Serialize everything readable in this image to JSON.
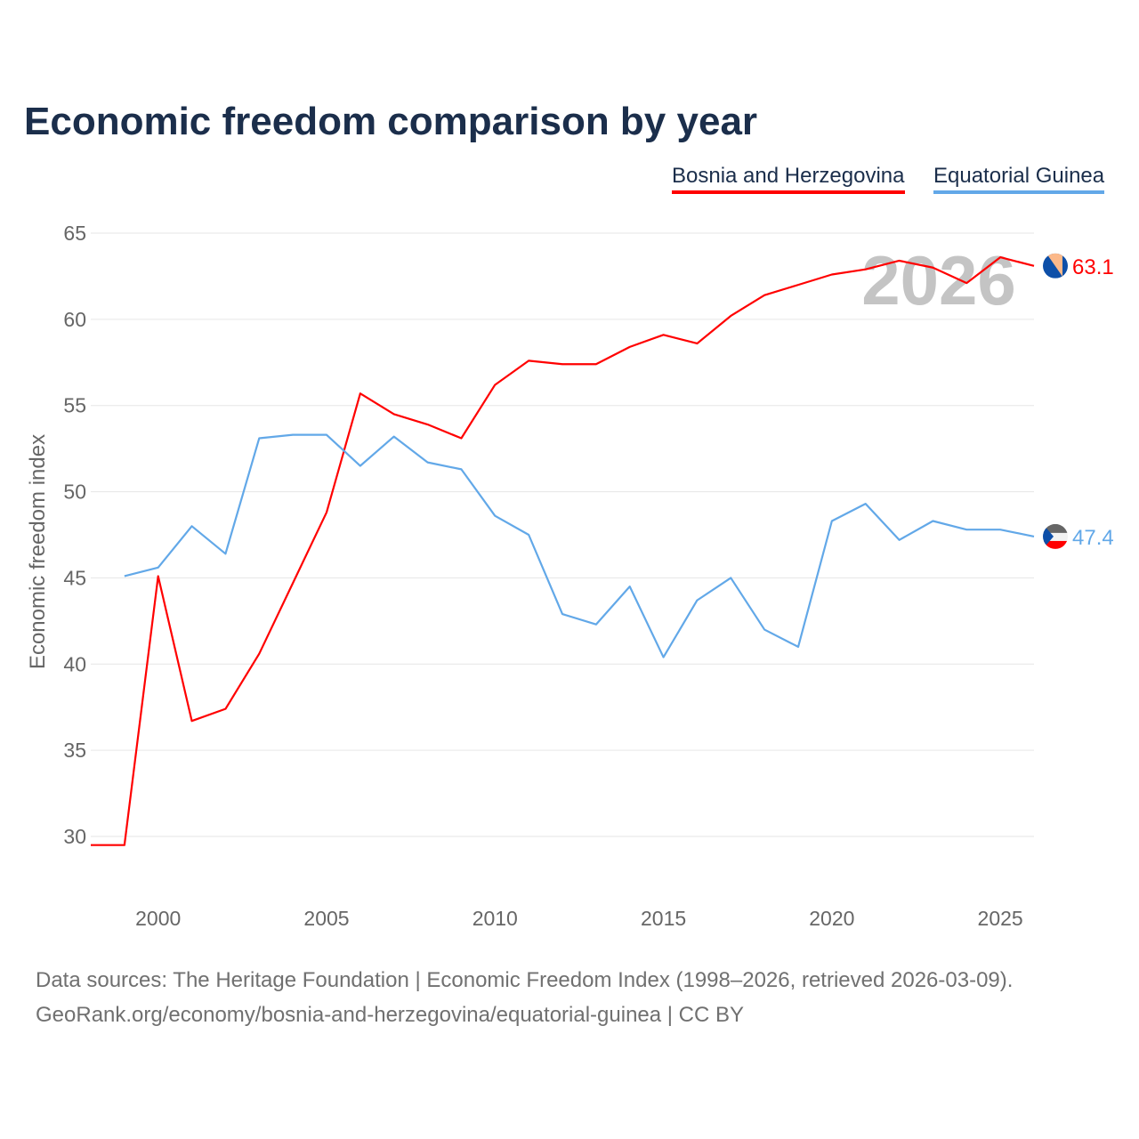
{
  "chart_data": {
    "type": "line",
    "title": "Economic freedom comparison by year",
    "xlabel": "",
    "ylabel": "Economic freedom index",
    "xlim": [
      1998,
      2026
    ],
    "ylim": [
      27.5,
      65
    ],
    "yticks": [
      30,
      35,
      40,
      45,
      50,
      55,
      60,
      65
    ],
    "xticks": [
      2000,
      2005,
      2010,
      2015,
      2020,
      2025
    ],
    "grid": true,
    "legend_position": "top-right",
    "watermark_year": "2026",
    "series": [
      {
        "name": "Bosnia and Herzegovina",
        "color": "#ff0000",
        "end_label": "63.1",
        "flag": "bosnia-flag",
        "x": [
          1998,
          1999,
          2000,
          2001,
          2002,
          2003,
          2004,
          2005,
          2006,
          2007,
          2008,
          2009,
          2010,
          2011,
          2012,
          2013,
          2014,
          2015,
          2016,
          2017,
          2018,
          2019,
          2020,
          2021,
          2022,
          2023,
          2024,
          2025,
          2026
        ],
        "values": [
          29.5,
          29.5,
          45.1,
          36.7,
          37.4,
          40.6,
          44.7,
          48.8,
          55.7,
          54.5,
          53.9,
          53.1,
          56.2,
          57.6,
          57.4,
          57.4,
          58.4,
          59.1,
          58.6,
          60.2,
          61.4,
          62.0,
          62.6,
          62.9,
          63.4,
          63.0,
          62.1,
          63.6,
          63.1
        ]
      },
      {
        "name": "Equatorial Guinea",
        "color": "#62a8e8",
        "end_label": "47.4",
        "flag": "equatorial-guinea-flag",
        "x": [
          1999,
          2000,
          2001,
          2002,
          2003,
          2004,
          2005,
          2006,
          2007,
          2008,
          2009,
          2010,
          2011,
          2012,
          2013,
          2014,
          2015,
          2016,
          2017,
          2018,
          2019,
          2020,
          2021,
          2022,
          2023,
          2024,
          2025,
          2026
        ],
        "values": [
          45.1,
          45.6,
          48.0,
          46.4,
          53.1,
          53.3,
          53.3,
          51.5,
          53.2,
          51.7,
          51.3,
          48.6,
          47.5,
          42.9,
          42.3,
          44.5,
          40.4,
          43.7,
          45.0,
          42.0,
          41.0,
          48.3,
          49.3,
          47.2,
          48.3,
          47.8,
          47.8,
          47.4
        ]
      }
    ]
  },
  "footer": {
    "line1": "Data sources: The Heritage Foundation | Economic Freedom Index (1998–2026, retrieved 2026-03-09).",
    "line2": "GeoRank.org/economy/bosnia-and-herzegovina/equatorial-guinea | CC BY"
  }
}
